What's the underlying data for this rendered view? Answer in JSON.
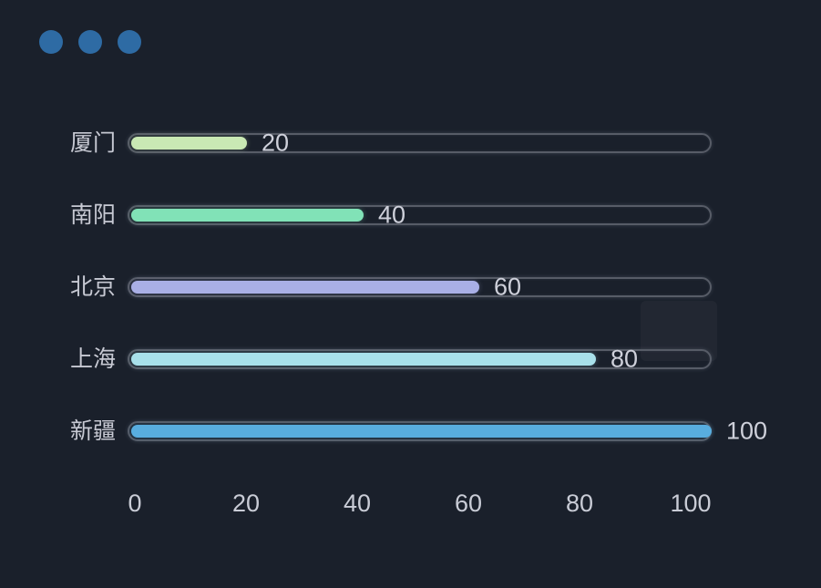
{
  "window": {
    "background": "#1a202b",
    "dot_color": "#2e6ba4",
    "dots": [
      "window-dot-1",
      "window-dot-2",
      "window-dot-3"
    ]
  },
  "chart_data": {
    "type": "bar",
    "orientation": "horizontal",
    "title": "",
    "xlabel": "",
    "ylabel": "",
    "categories": [
      "厦门",
      "南阳",
      "北京",
      "上海",
      "新疆"
    ],
    "values": [
      20,
      40,
      60,
      80,
      100
    ],
    "value_labels": [
      "20",
      "40",
      "60",
      "80",
      "100"
    ],
    "bar_colors": [
      "#c9e9b4",
      "#81e2b7",
      "#a9afe6",
      "#a8e0ea",
      "#58addf"
    ],
    "x_axis_ticks": [
      "0",
      "20",
      "40",
      "60",
      "80",
      "100"
    ],
    "x_axis_tick_values": [
      0,
      20,
      40,
      60,
      80,
      100
    ],
    "xlim": [
      0,
      100
    ],
    "grid": "off",
    "legend": "none",
    "track_border_color": "#575c67",
    "label_text_color": "#c7c9d3",
    "value_text_color": "#ced0da",
    "axis_text_color": "#c9ccd6"
  }
}
